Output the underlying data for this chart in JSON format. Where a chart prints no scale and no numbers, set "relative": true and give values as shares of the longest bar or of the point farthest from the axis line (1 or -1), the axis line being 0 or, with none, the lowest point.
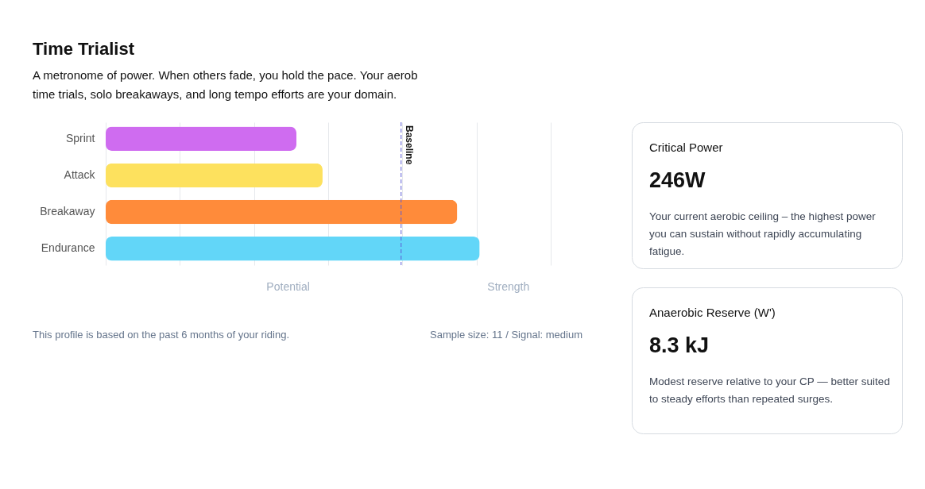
{
  "chart_data": [
    {
      "type": "bar",
      "title": "Time Trialist",
      "subtitle": "A metronome of power. When others fade, you hold the pace. Your aerob\ntime trials, solo breakaways, and long tempo efforts are your domain.",
      "categories": [
        "Sprint",
        "Attack",
        "Breakaway",
        "Endurance"
      ],
      "values": [
        0.51,
        0.58,
        0.94,
        1
      ],
      "colors": [
        "#cf6cf0",
        "#fde15e",
        "#ff8b3a",
        "#62d6f8"
      ],
      "orientation": "horizontal",
      "relative": true,
      "grid": "x",
      "tick_labels": "y",
      "ref_lines": [
        {
          "axis": "x",
          "value": 0.79,
          "label": "Baseline",
          "color": "#5b5bd6",
          "line_style": "dashed"
        }
      ],
      "annotations": [
        "Potential",
        "Strength",
        "This profile is based on the past 6 months of your riding.",
        "Sample size: 11 / Signal: medium"
      ]
    },
    {
      "type": "other",
      "title": "Critical Power",
      "annotations": [
        "246W",
        "Your current aerobic ceiling – the highest power you can sustain without rapidly accumulating fatigue."
      ]
    },
    {
      "type": "other",
      "title": "Anaerobic Reserve (W')",
      "annotations": [
        "8.3 kJ",
        "Modest reserve relative to your CP — better suited to steady efforts than repeated surges."
      ]
    }
  ]
}
